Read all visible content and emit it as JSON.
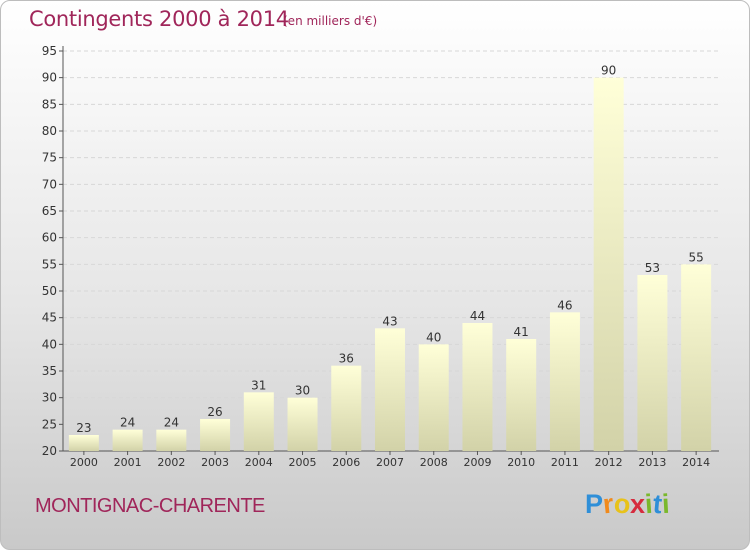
{
  "chart_data": {
    "type": "bar",
    "title": "Contingents 2000 à 2014",
    "subtitle": "(en milliers d'€)",
    "categories": [
      "2000",
      "2001",
      "2002",
      "2003",
      "2004",
      "2005",
      "2006",
      "2007",
      "2008",
      "2009",
      "2010",
      "2011",
      "2012",
      "2013",
      "2014"
    ],
    "values": [
      23,
      24,
      24,
      26,
      31,
      30,
      36,
      43,
      40,
      44,
      41,
      46,
      90,
      53,
      55
    ],
    "ylim": [
      20,
      95
    ],
    "yticks": [
      20,
      25,
      30,
      35,
      40,
      45,
      50,
      55,
      60,
      65,
      70,
      75,
      80,
      85,
      90,
      95
    ],
    "grid": true,
    "bar_color_top": "#ffffd8",
    "bar_color_bottom": "#d2d2a8"
  },
  "footer": {
    "commune": "MONTIGNAC-CHARENTE",
    "logo_letters": [
      {
        "char": "P",
        "color": "#2f8fd8"
      },
      {
        "char": "r",
        "color": "#f08a1c"
      },
      {
        "char": "o",
        "color": "#e8c21a"
      },
      {
        "char": "x",
        "color": "#d62b3e"
      },
      {
        "char": "i",
        "color": "#7ab82c"
      },
      {
        "char": "t",
        "color": "#2f8fd8"
      },
      {
        "char": "i",
        "color": "#7ab82c"
      }
    ]
  },
  "colors": {
    "accent": "#a0265a"
  }
}
